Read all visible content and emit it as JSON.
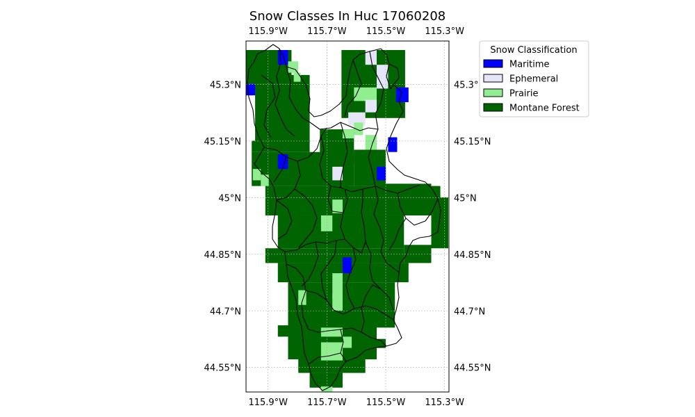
{
  "chart_data": {
    "type": "heatmap",
    "title": "Snow Classes In Huc 17060208",
    "xlim": [
      -115.975,
      -115.285
    ],
    "ylim": [
      44.485,
      45.415
    ],
    "x_ticks": [
      {
        "value": -115.9,
        "label": "115.9°W"
      },
      {
        "value": -115.7,
        "label": "115.7°W"
      },
      {
        "value": -115.5,
        "label": "115.5°W"
      },
      {
        "value": -115.3,
        "label": "115.3°W"
      }
    ],
    "y_ticks": [
      {
        "value": 45.3,
        "label": "45.3°N"
      },
      {
        "value": 45.15,
        "label": "45.15°N"
      },
      {
        "value": 45.0,
        "label": "45°N"
      },
      {
        "value": 44.85,
        "label": "44.85°N"
      },
      {
        "value": 44.7,
        "label": "44.7°N"
      },
      {
        "value": 44.55,
        "label": "44.55°N"
      }
    ],
    "grid": true,
    "legend": {
      "title": "Snow Classification",
      "placement": "outside upper right",
      "entries": [
        {
          "label": "Maritime",
          "color": "#0000ff"
        },
        {
          "label": "Ephemeral",
          "color": "#e6e6fa"
        },
        {
          "label": "Prairie",
          "color": "#90ee90"
        },
        {
          "label": "Montane Forest",
          "color": "#006400"
        }
      ]
    },
    "colors": {
      "Maritime": "#0000ff",
      "Ephemeral": "#e6e6fa",
      "Prairie": "#90ee90",
      "Montane Forest": "#006400"
    },
    "cell_size_deg": {
      "lon": 0.04167,
      "lat": 0.03
    }
  }
}
